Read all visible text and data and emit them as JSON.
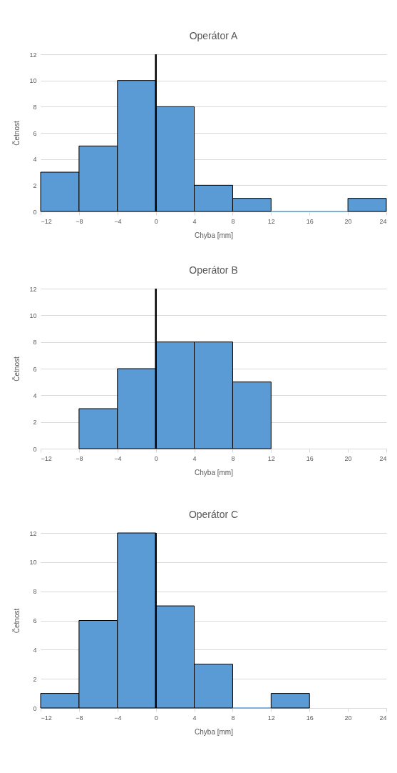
{
  "chart_data": [
    {
      "type": "histogram",
      "title": "Operátor A",
      "xlabel": "Chyba [mm]",
      "ylabel": "Četnost",
      "bins": [
        -12,
        -8,
        -4,
        0,
        4,
        8,
        12,
        16,
        20,
        24
      ],
      "values": [
        3,
        5,
        10,
        8,
        2,
        1,
        0,
        0,
        1
      ],
      "color": "#5b9bd5",
      "xlim": [
        -12,
        24
      ],
      "xticks": [
        -12,
        -8,
        -4,
        0,
        4,
        8,
        12,
        16,
        20,
        24
      ],
      "ylim": [
        0,
        12
      ],
      "yticks": [
        0,
        2,
        4,
        6,
        8,
        10,
        12
      ],
      "grid": "y",
      "ref_lines": [
        {
          "axis": "x",
          "value": 0,
          "color": "#000000"
        }
      ]
    },
    {
      "type": "histogram",
      "title": "Operátor B",
      "xlabel": "Chyba [mm]",
      "ylabel": "Četnost",
      "bins": [
        -8,
        -4,
        0,
        4,
        8,
        12
      ],
      "values": [
        3,
        6,
        8,
        8,
        5
      ],
      "color": "#5b9bd5",
      "xlim": [
        -12,
        24
      ],
      "xticks": [
        -12,
        -8,
        -4,
        0,
        4,
        8,
        12,
        16,
        20,
        24
      ],
      "ylim": [
        0,
        12
      ],
      "yticks": [
        0,
        2,
        4,
        6,
        8,
        10,
        12
      ],
      "grid": "y",
      "ref_lines": [
        {
          "axis": "x",
          "value": 0,
          "color": "#000000"
        }
      ]
    },
    {
      "type": "histogram",
      "title": "Operátor C",
      "xlabel": "Chyba [mm]",
      "ylabel": "Četnost",
      "bins": [
        -12,
        -8,
        -4,
        0,
        4,
        8,
        12,
        16
      ],
      "values": [
        1,
        6,
        12,
        7,
        3,
        0,
        1
      ],
      "color": "#5b9bd5",
      "xlim": [
        -12,
        24
      ],
      "xticks": [
        -12,
        -8,
        -4,
        0,
        4,
        8,
        12,
        16,
        20,
        24
      ],
      "ylim": [
        0,
        12
      ],
      "yticks": [
        0,
        2,
        4,
        6,
        8,
        10,
        12
      ],
      "grid": "y",
      "ref_lines": [
        {
          "axis": "x",
          "value": 0,
          "color": "#000000"
        }
      ]
    }
  ]
}
